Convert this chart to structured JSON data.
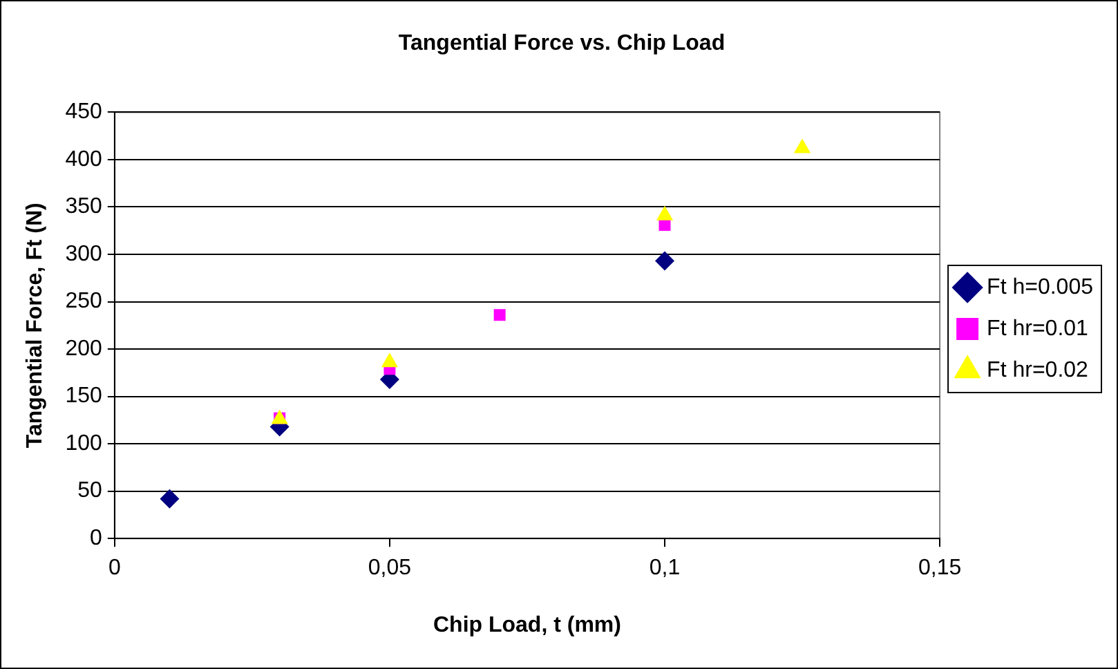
{
  "chart_data": {
    "type": "scatter",
    "title": "Tangential Force vs. Chip Load",
    "xlabel": "Chip Load, t (mm)",
    "ylabel": "Tangential Force, Ft (N)",
    "series": [
      {
        "name": "Ft h=0.005",
        "color": "#000080",
        "marker": "diamond",
        "x": [
          0.01,
          0.03,
          0.05,
          0.1
        ],
        "values": [
          42,
          118,
          168,
          293
        ]
      },
      {
        "name": "Ft hr=0.01",
        "color": "#ff00ff",
        "marker": "square",
        "x": [
          0.03,
          0.05,
          0.07,
          0.1
        ],
        "values": [
          127,
          179,
          236,
          331
        ]
      },
      {
        "name": "Ft hr=0.02",
        "color": "#ffff00",
        "marker": "triangle",
        "x": [
          0.03,
          0.05,
          0.1,
          0.125
        ],
        "values": [
          126,
          186,
          341,
          412
        ]
      }
    ],
    "xlim": [
      0,
      0.15
    ],
    "xticks": [
      0,
      {
        "value": 0.05,
        "label": "0,05"
      },
      {
        "value": 0.1,
        "label": "0,1"
      },
      {
        "value": 0.15,
        "label": "0,15"
      }
    ],
    "ylim": [
      0,
      450
    ],
    "yticks": [
      0,
      50,
      100,
      150,
      200,
      250,
      300,
      350,
      400,
      450
    ],
    "grid": "y",
    "legend": "right"
  }
}
